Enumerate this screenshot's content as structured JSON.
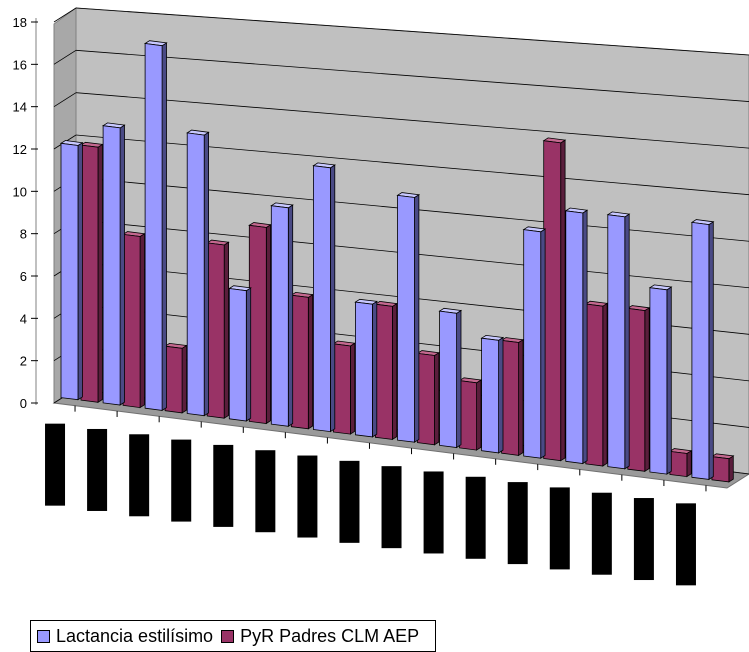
{
  "colors": {
    "series1_front": "#9999ff",
    "series1_side": "#4a4a85",
    "series1_top": "#c8c8ff",
    "series2_front": "#993366",
    "series2_side": "#5a1e3c",
    "series2_top": "#c4688f",
    "wall": "#c0c0c0",
    "floor": "#9a9a9a",
    "category_label_block": "#000000"
  },
  "chart_data": {
    "type": "bar",
    "style": "3d-clustered-column",
    "ylim": [
      0,
      18
    ],
    "yticks": [
      "0",
      "2",
      "4",
      "6",
      "8",
      "10",
      "12",
      "14",
      "16",
      "18"
    ],
    "grid": true,
    "legend_position": "bottom-left",
    "category_labels_obscured": true,
    "series": [
      {
        "name": "Lactancia estilísimo",
        "values": [
          12,
          13,
          17,
          13,
          6,
          10,
          12,
          6,
          11,
          6,
          5,
          10,
          11,
          11,
          8,
          11
        ]
      },
      {
        "name": "PyR Padres CLM AEP",
        "values": [
          12,
          8,
          3,
          8,
          9,
          6,
          4,
          6,
          4,
          3,
          5,
          14,
          7,
          7,
          1,
          1
        ]
      }
    ]
  }
}
